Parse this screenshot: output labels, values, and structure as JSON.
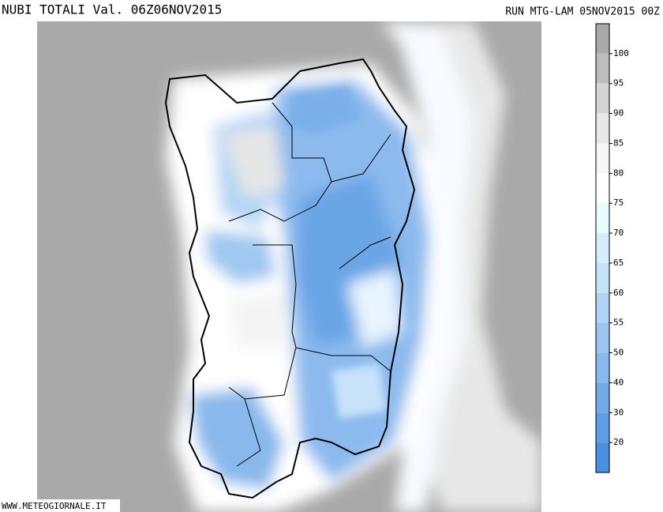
{
  "header": {
    "title": "NUBI TOTALI Val. 06Z06NOV2015",
    "run": "RUN MTG-LAM 05NOV2015 00Z"
  },
  "colorbar": {
    "ticks": [
      100,
      95,
      90,
      85,
      80,
      75,
      70,
      65,
      60,
      55,
      50,
      40,
      30,
      20
    ],
    "colors": [
      "#a9a9a9",
      "#bdbdbd",
      "#d4d4d4",
      "#e8e8e8",
      "#f6f6f6",
      "#ffffff",
      "#e6fcff",
      "#d6eefc",
      "#c4e2f8",
      "#b0d4f4",
      "#9cc6f0",
      "#88b8ec",
      "#72aae8",
      "#5e9ce4",
      "#4a90e0"
    ]
  },
  "footer": "WWW.METEOGIORNALE.IT"
}
